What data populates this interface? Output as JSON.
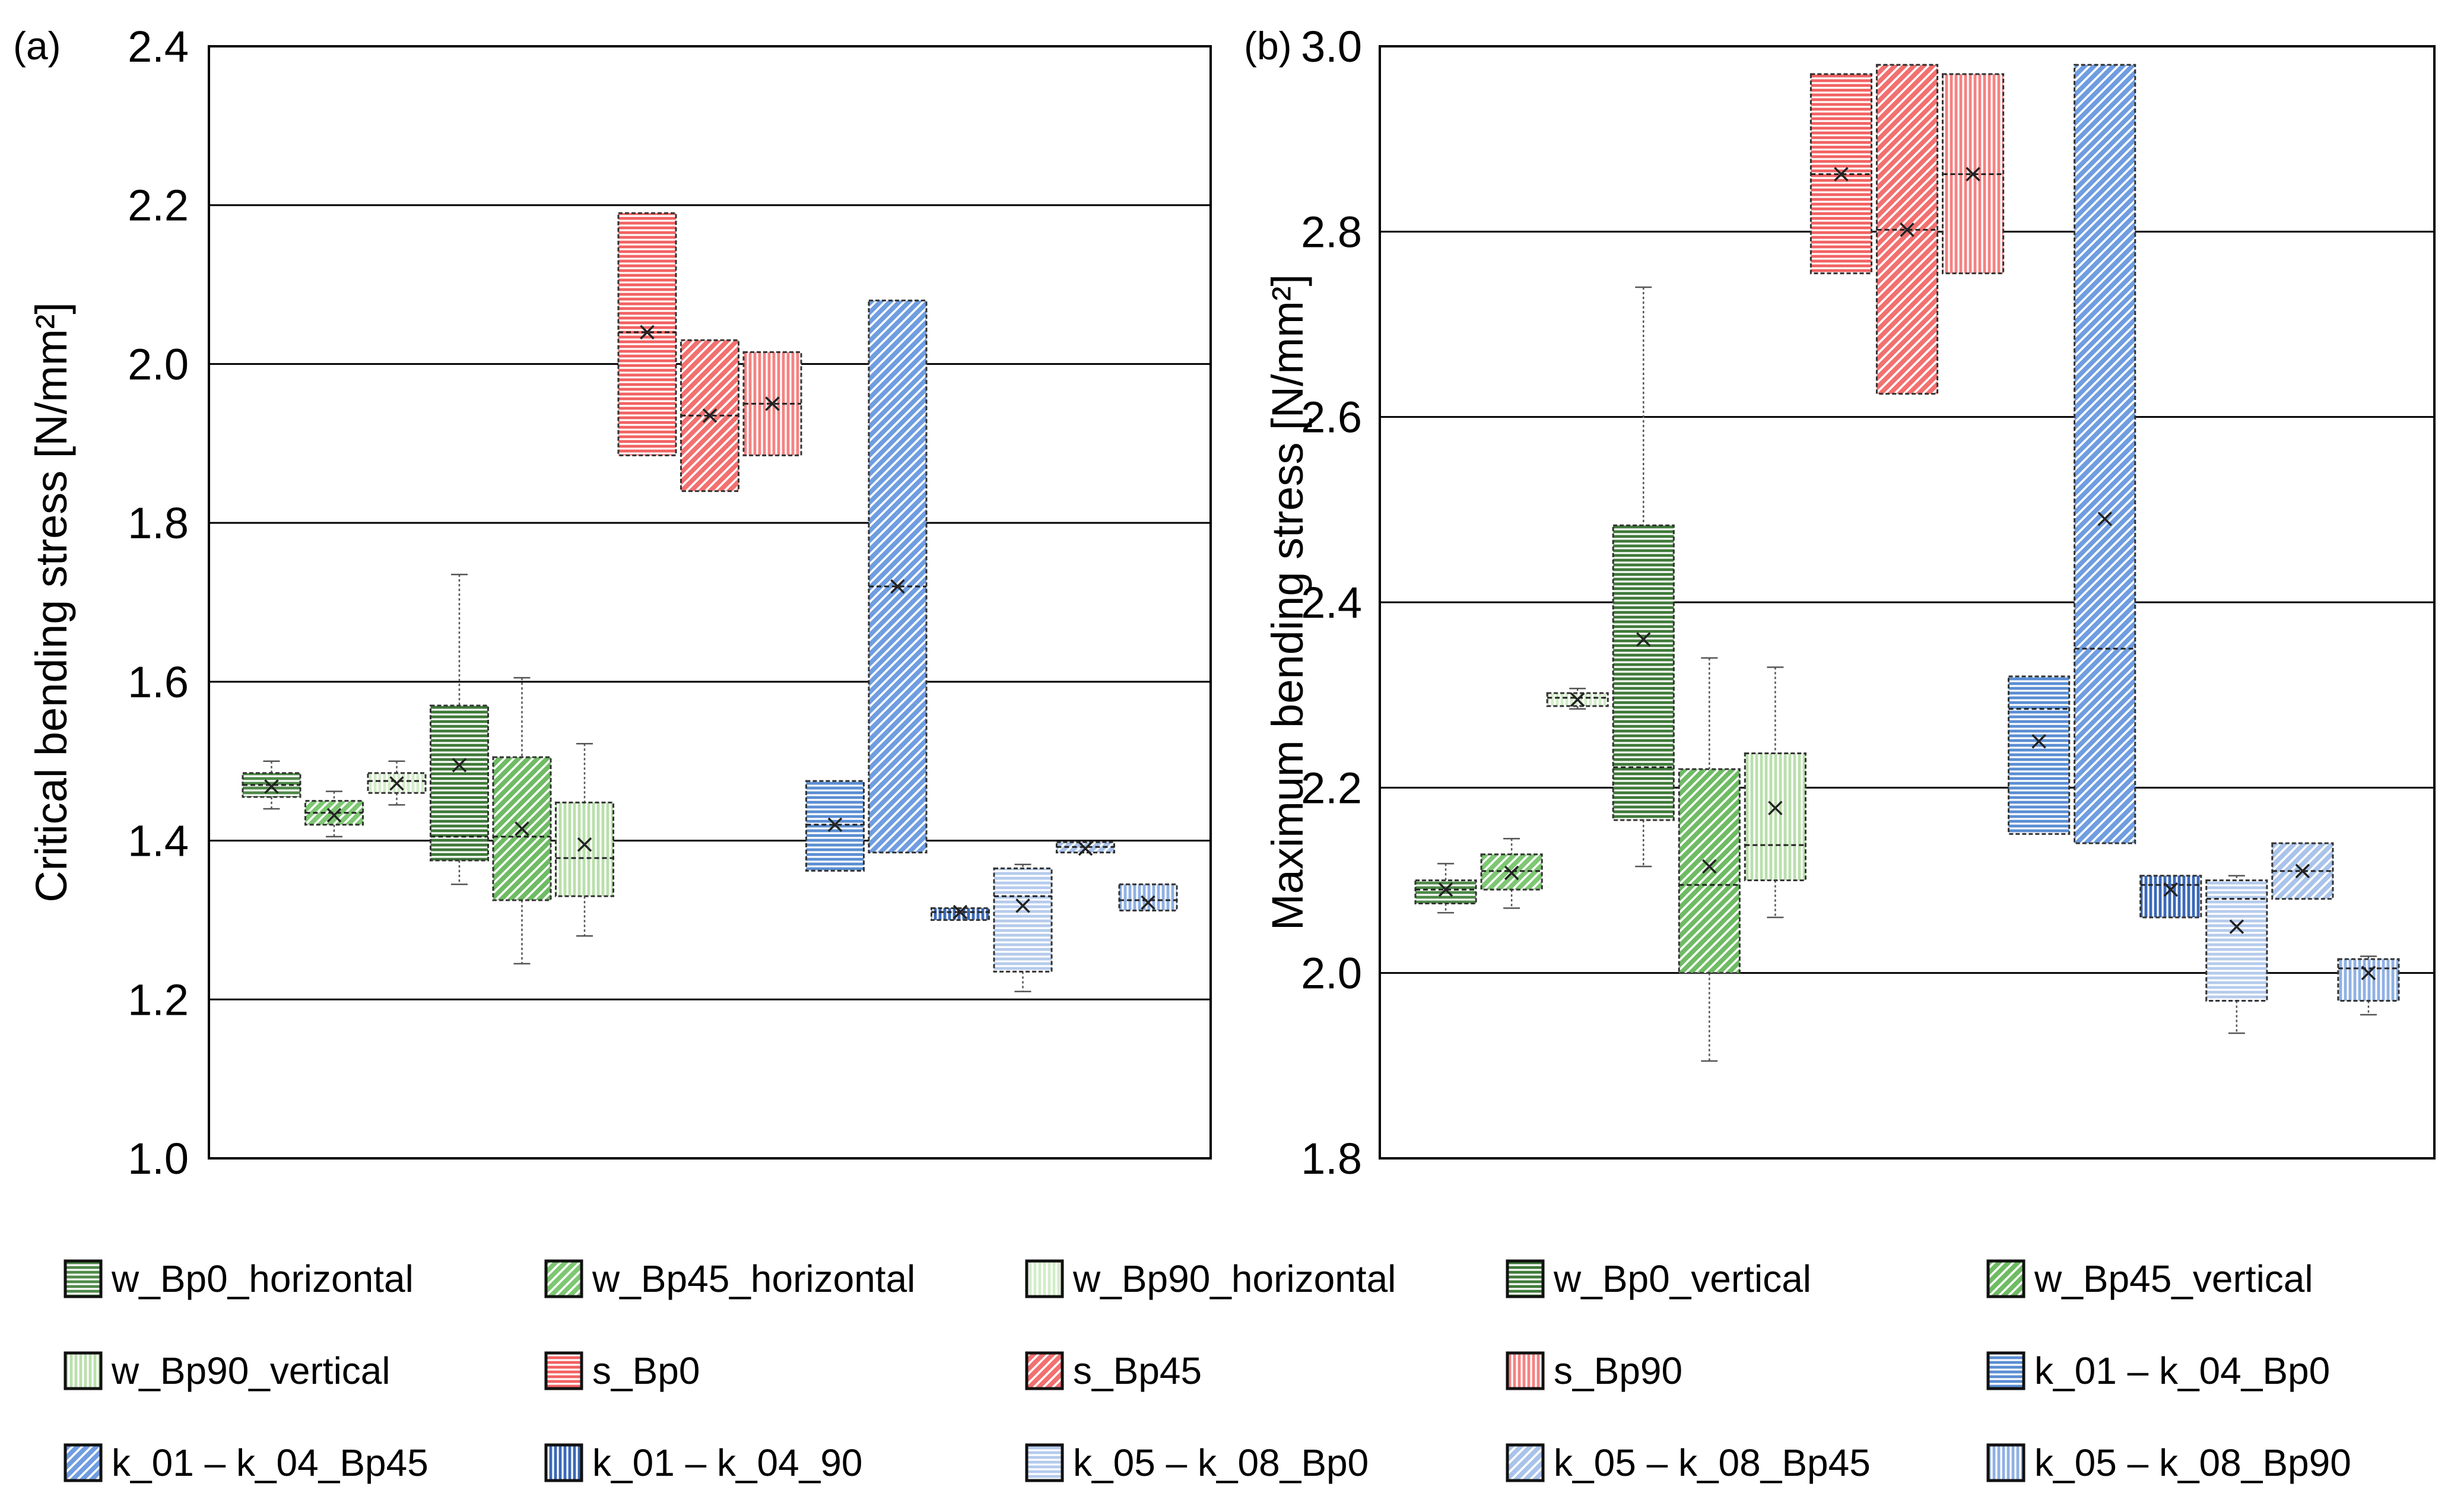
{
  "legend": [
    {
      "label": "w_Bp0_horizontal",
      "fill": "#4e8a48",
      "hatch": "h",
      "key": "w0h"
    },
    {
      "label": "w_Bp45_horizontal",
      "fill": "#7dc772",
      "hatch": "d",
      "key": "w45h"
    },
    {
      "label": "w_Bp90_horizontal",
      "fill": "#d3edc9",
      "hatch": "v",
      "key": "w90h"
    },
    {
      "label": "w_Bp0_vertical",
      "fill": "#3f7a39",
      "hatch": "h",
      "key": "w0v"
    },
    {
      "label": "w_Bp45_vertical",
      "fill": "#6fbb64",
      "hatch": "d",
      "key": "w45v"
    },
    {
      "label": "w_Bp90_vertical",
      "fill": "#b9e0ab",
      "hatch": "v",
      "key": "w90v"
    },
    {
      "label": "s_Bp0",
      "fill": "#f26262",
      "hatch": "h",
      "key": "s0"
    },
    {
      "label": "s_Bp45",
      "fill": "#f27070",
      "hatch": "d",
      "key": "s45"
    },
    {
      "label": "s_Bp90",
      "fill": "#f58282",
      "hatch": "v",
      "key": "s90"
    },
    {
      "label": "k_01 – k_04_Bp0",
      "fill": "#5b8ed3",
      "hatch": "h",
      "key": "k0"
    },
    {
      "label": "k_01 – k_04_Bp45",
      "fill": "#6f9de0",
      "hatch": "d",
      "key": "k45"
    },
    {
      "label": "k_01 – k_04_90",
      "fill": "#3a68b8",
      "hatch": "v",
      "key": "k90"
    },
    {
      "label": "k_05 – k_08_Bp0",
      "fill": "#b5cbec",
      "hatch": "h",
      "key": "kk0"
    },
    {
      "label": "k_05 – k_08_Bp45",
      "fill": "#a9c3ea",
      "hatch": "d",
      "key": "kk45"
    },
    {
      "label": "k_05 – k_08_Bp90",
      "fill": "#8fb0e3",
      "hatch": "v",
      "key": "kk90"
    }
  ],
  "chart_data": [
    {
      "type": "box",
      "panel_label": "(a)",
      "ylabel": "Critical bending stress [N/mm²]",
      "ylim": [
        1.0,
        2.4
      ],
      "yticks": [
        "1.0",
        "1.2",
        "1.4",
        "1.6",
        "1.8",
        "2.0",
        "2.2",
        "2.4"
      ],
      "ytick_values": [
        1.0,
        1.2,
        1.4,
        1.6,
        1.8,
        2.0,
        2.2,
        2.4
      ],
      "series": [
        {
          "name": "w_Bp0_horizontal",
          "min": 1.44,
          "q1": 1.455,
          "median": 1.47,
          "mean": 1.468,
          "q3": 1.485,
          "max": 1.5
        },
        {
          "name": "w_Bp45_horizontal",
          "min": 1.405,
          "q1": 1.42,
          "median": 1.435,
          "mean": 1.432,
          "q3": 1.45,
          "max": 1.462
        },
        {
          "name": "w_Bp90_horizontal",
          "min": 1.445,
          "q1": 1.46,
          "median": 1.475,
          "mean": 1.472,
          "q3": 1.485,
          "max": 1.5
        },
        {
          "name": "w_Bp0_vertical",
          "min": 1.345,
          "q1": 1.375,
          "median": 1.405,
          "mean": 1.495,
          "q3": 1.57,
          "max": 1.735
        },
        {
          "name": "w_Bp45_vertical",
          "min": 1.245,
          "q1": 1.325,
          "median": 1.405,
          "mean": 1.415,
          "q3": 1.505,
          "max": 1.605
        },
        {
          "name": "w_Bp90_vertical",
          "min": 1.28,
          "q1": 1.33,
          "median": 1.378,
          "mean": 1.395,
          "q3": 1.448,
          "max": 1.522
        },
        {
          "name": "s_Bp0",
          "min": 1.885,
          "q1": 1.885,
          "median": 2.04,
          "mean": 2.04,
          "q3": 2.19,
          "max": 2.19
        },
        {
          "name": "s_Bp45",
          "min": 1.84,
          "q1": 1.84,
          "median": 1.935,
          "mean": 1.935,
          "q3": 2.03,
          "max": 2.03
        },
        {
          "name": "s_Bp90",
          "min": 1.885,
          "q1": 1.885,
          "median": 1.95,
          "mean": 1.95,
          "q3": 2.015,
          "max": 2.015
        },
        {
          "name": "k_01 – k_04_Bp0",
          "min": 1.362,
          "q1": 1.362,
          "median": 1.42,
          "mean": 1.42,
          "q3": 1.475,
          "max": 1.475
        },
        {
          "name": "k_01 – k_04_Bp45",
          "min": 1.385,
          "q1": 1.385,
          "median": 1.72,
          "mean": 1.72,
          "q3": 2.08,
          "max": 2.08
        },
        {
          "name": "k_01 – k_04_90",
          "min": 1.3,
          "q1": 1.3,
          "median": 1.31,
          "mean": 1.31,
          "q3": 1.315,
          "max": 1.315
        },
        {
          "name": "k_05 – k_08_Bp0",
          "min": 1.21,
          "q1": 1.235,
          "median": 1.33,
          "mean": 1.318,
          "q3": 1.365,
          "max": 1.37
        },
        {
          "name": "k_05 – k_08_Bp45",
          "min": 1.385,
          "q1": 1.385,
          "median": 1.392,
          "mean": 1.39,
          "q3": 1.398,
          "max": 1.398
        },
        {
          "name": "k_05 – k_08_Bp90",
          "min": 1.312,
          "q1": 1.312,
          "median": 1.325,
          "mean": 1.322,
          "q3": 1.345,
          "max": 1.345
        }
      ]
    },
    {
      "type": "box",
      "panel_label": "(b)",
      "ylabel": "Maximum bending stress [N/mm²]",
      "ylim": [
        1.8,
        3.0
      ],
      "yticks": [
        "1.8",
        "2.0",
        "2.2",
        "2.4",
        "2.6",
        "2.8",
        "3.0"
      ],
      "ytick_values": [
        1.8,
        2.0,
        2.2,
        2.4,
        2.6,
        2.8,
        3.0
      ],
      "series": [
        {
          "name": "w_Bp0_horizontal",
          "min": 2.065,
          "q1": 2.075,
          "median": 2.09,
          "mean": 2.09,
          "q3": 2.1,
          "max": 2.118
        },
        {
          "name": "w_Bp45_horizontal",
          "min": 2.07,
          "q1": 2.09,
          "median": 2.11,
          "mean": 2.108,
          "q3": 2.128,
          "max": 2.145
        },
        {
          "name": "w_Bp90_horizontal",
          "min": 2.285,
          "q1": 2.288,
          "median": 2.297,
          "mean": 2.295,
          "q3": 2.302,
          "max": 2.307
        },
        {
          "name": "w_Bp0_vertical",
          "min": 2.115,
          "q1": 2.165,
          "median": 2.222,
          "mean": 2.36,
          "q3": 2.483,
          "max": 2.74
        },
        {
          "name": "w_Bp45_vertical",
          "min": 1.905,
          "q1": 2.0,
          "median": 2.095,
          "mean": 2.115,
          "q3": 2.22,
          "max": 2.34
        },
        {
          "name": "w_Bp90_vertical",
          "min": 2.06,
          "q1": 2.1,
          "median": 2.138,
          "mean": 2.178,
          "q3": 2.237,
          "max": 2.33
        },
        {
          "name": "s_Bp0",
          "min": 2.755,
          "q1": 2.755,
          "median": 2.862,
          "mean": 2.862,
          "q3": 2.97,
          "max": 2.97
        },
        {
          "name": "s_Bp45",
          "min": 2.625,
          "q1": 2.625,
          "median": 2.802,
          "mean": 2.802,
          "q3": 2.98,
          "max": 2.98
        },
        {
          "name": "s_Bp90",
          "min": 2.755,
          "q1": 2.755,
          "median": 2.862,
          "mean": 2.862,
          "q3": 2.97,
          "max": 2.97
        },
        {
          "name": "k_01 – k_04_Bp0",
          "min": 2.15,
          "q1": 2.15,
          "median": 2.285,
          "mean": 2.25,
          "q3": 2.32,
          "max": 2.32
        },
        {
          "name": "k_01 – k_04_Bp45",
          "min": 2.14,
          "q1": 2.14,
          "median": 2.35,
          "mean": 2.49,
          "q3": 2.98,
          "max": 2.98
        },
        {
          "name": "k_01 – k_04_90",
          "min": 2.06,
          "q1": 2.06,
          "median": 2.095,
          "mean": 2.09,
          "q3": 2.105,
          "max": 2.105
        },
        {
          "name": "k_05 – k_08_Bp0",
          "min": 1.935,
          "q1": 1.97,
          "median": 2.08,
          "mean": 2.05,
          "q3": 2.1,
          "max": 2.105
        },
        {
          "name": "k_05 – k_08_Bp45",
          "min": 2.08,
          "q1": 2.08,
          "median": 2.11,
          "mean": 2.11,
          "q3": 2.14,
          "max": 2.14
        },
        {
          "name": "k_05 – k_08_Bp90",
          "min": 1.955,
          "q1": 1.97,
          "median": 2.005,
          "mean": 2.0,
          "q3": 2.015,
          "max": 2.018
        }
      ]
    }
  ]
}
